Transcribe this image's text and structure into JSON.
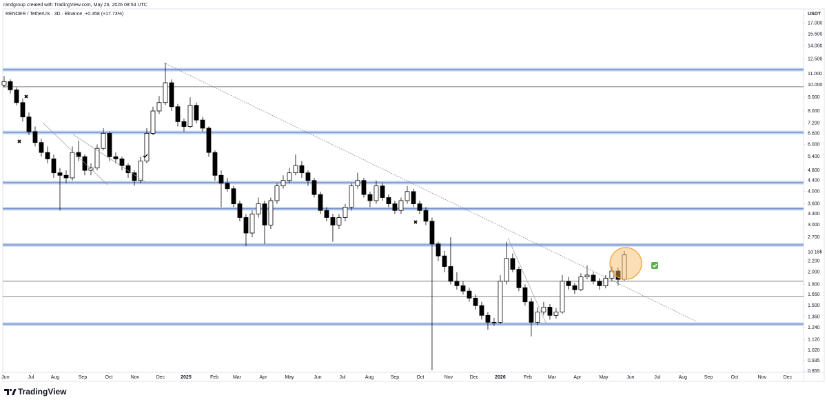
{
  "header": {
    "credit": "randgroup created with TradingView.com, May 26, 2026 08:54 UTC"
  },
  "footer": {
    "brand": "TradingView"
  },
  "chart_data": {
    "type": "candlestick",
    "title": "RENDER / TetherUS · 3D · Binance",
    "change": "+0.358 (+17.73%)",
    "y_unit": "USDT",
    "countdown": "1d 16h",
    "log_scale": true,
    "up_color": "#ffffff",
    "down_color": "#000000",
    "edge_color": "#000000",
    "change_color": "#089981",
    "open": [
      10.0,
      10.3,
      9.6,
      8.6,
      7.6,
      6.7,
      6.1,
      5.6,
      5.3,
      4.7,
      4.6,
      4.5,
      5.6,
      5.4,
      4.8,
      4.9,
      5.8,
      6.6,
      5.4,
      5.3,
      5.0,
      4.7,
      4.4,
      5.2,
      6.6,
      8.0,
      8.6,
      10.2,
      8.3,
      7.3,
      7.0,
      8.4,
      7.4,
      6.9,
      5.6,
      4.6,
      4.3,
      4.1,
      3.6,
      3.2,
      2.8,
      3.3,
      3.6,
      3.0,
      3.7,
      4.2,
      4.4,
      4.7,
      5.0,
      4.7,
      4.4,
      3.9,
      3.4,
      3.2,
      3.0,
      3.2,
      3.5,
      4.2,
      4.4,
      3.9,
      3.7,
      4.2,
      3.8,
      3.6,
      3.4,
      3.7,
      4.0,
      3.6,
      3.4,
      3.1,
      2.55,
      2.3,
      2.1,
      1.85,
      1.78,
      1.7,
      1.6,
      1.5,
      1.38,
      1.3,
      1.3,
      1.85,
      2.25,
      2.05,
      1.75,
      1.55,
      1.3,
      1.42,
      1.48,
      1.38,
      1.42,
      1.85,
      1.78,
      1.72,
      1.92,
      1.95,
      1.85,
      1.78,
      1.9,
      2.02,
      1.88
    ],
    "high": [
      10.8,
      10.5,
      9.8,
      8.9,
      7.9,
      7.0,
      6.3,
      5.9,
      5.5,
      4.9,
      4.8,
      5.9,
      6.2,
      5.5,
      5.1,
      6.0,
      6.9,
      6.7,
      5.6,
      5.4,
      5.1,
      4.8,
      5.4,
      6.9,
      8.3,
      9.1,
      12.1,
      10.5,
      8.5,
      7.5,
      9.0,
      8.6,
      7.6,
      7.0,
      5.7,
      4.8,
      4.5,
      4.2,
      3.7,
      3.3,
      3.4,
      3.8,
      3.7,
      3.8,
      4.3,
      4.6,
      4.9,
      5.5,
      5.2,
      4.8,
      4.5,
      4.0,
      3.5,
      3.3,
      3.3,
      3.6,
      4.3,
      4.7,
      4.5,
      4.0,
      4.4,
      4.3,
      3.9,
      3.7,
      3.8,
      4.2,
      4.1,
      3.7,
      3.5,
      3.2,
      2.6,
      2.4,
      2.7,
      2.0,
      1.85,
      1.75,
      1.65,
      1.55,
      1.42,
      1.35,
      1.95,
      2.6,
      2.35,
      2.1,
      1.8,
      1.6,
      1.48,
      1.55,
      1.52,
      1.47,
      1.95,
      1.92,
      1.82,
      1.98,
      2.12,
      2.0,
      1.9,
      1.95,
      2.1,
      2.08,
      2.4
    ],
    "low": [
      9.8,
      9.3,
      8.4,
      7.3,
      6.5,
      5.9,
      5.4,
      5.1,
      4.5,
      3.4,
      4.3,
      4.4,
      5.2,
      4.6,
      4.6,
      4.8,
      5.7,
      5.2,
      5.1,
      4.8,
      4.5,
      4.2,
      4.3,
      5.1,
      6.5,
      7.8,
      8.4,
      8.0,
      7.0,
      6.7,
      6.9,
      7.2,
      6.7,
      5.4,
      4.4,
      3.5,
      4.0,
      3.5,
      3.1,
      2.5,
      2.7,
      3.2,
      2.55,
      2.9,
      3.6,
      4.1,
      4.3,
      4.6,
      4.5,
      4.2,
      3.8,
      3.3,
      3.1,
      2.6,
      2.9,
      3.1,
      3.4,
      4.1,
      3.8,
      3.5,
      3.6,
      3.7,
      3.5,
      3.3,
      3.3,
      3.6,
      3.5,
      3.3,
      3.0,
      0.86,
      2.2,
      2.0,
      1.8,
      1.72,
      1.65,
      1.55,
      1.45,
      1.33,
      1.22,
      1.26,
      1.28,
      1.8,
      2.0,
      1.7,
      1.5,
      1.15,
      1.27,
      1.38,
      1.33,
      1.34,
      1.4,
      1.72,
      1.66,
      1.7,
      1.88,
      1.8,
      1.72,
      1.74,
      1.86,
      1.78,
      1.86
    ],
    "close": [
      10.3,
      9.6,
      8.6,
      7.6,
      6.7,
      6.1,
      5.6,
      5.3,
      4.7,
      4.6,
      4.5,
      5.6,
      5.4,
      4.8,
      4.9,
      5.8,
      6.6,
      5.4,
      5.3,
      5.0,
      4.7,
      4.4,
      5.2,
      6.6,
      8.0,
      8.6,
      10.2,
      8.3,
      7.3,
      7.0,
      8.4,
      7.4,
      6.9,
      5.6,
      4.6,
      4.3,
      4.1,
      3.6,
      3.2,
      2.8,
      3.3,
      3.6,
      3.0,
      3.7,
      4.2,
      4.4,
      4.7,
      5.0,
      4.7,
      4.4,
      3.9,
      3.4,
      3.2,
      3.0,
      3.2,
      3.5,
      4.2,
      4.4,
      3.9,
      3.7,
      4.2,
      3.8,
      3.6,
      3.4,
      3.7,
      4.0,
      3.6,
      3.4,
      3.1,
      2.55,
      2.3,
      2.1,
      1.85,
      1.78,
      1.7,
      1.6,
      1.5,
      1.38,
      1.3,
      1.3,
      1.85,
      2.25,
      2.05,
      1.75,
      1.55,
      1.3,
      1.42,
      1.48,
      1.38,
      1.42,
      1.85,
      1.78,
      1.72,
      1.92,
      1.95,
      1.85,
      1.78,
      1.9,
      2.02,
      1.88,
      2.32
    ],
    "xlim": [
      -0.22,
      128.9
    ],
    "xticks": [
      {
        "value": 0.22,
        "label": "Jun"
      },
      {
        "value": 4.33,
        "label": "Jul"
      },
      {
        "value": 8.22,
        "label": "Aug"
      },
      {
        "value": 12.67,
        "label": "Sep"
      },
      {
        "value": 16.89,
        "label": "Oct"
      },
      {
        "value": 21.11,
        "label": "Nov"
      },
      {
        "value": 25.22,
        "label": "Dec"
      },
      {
        "value": 29.33,
        "label": "2025"
      },
      {
        "value": 33.89,
        "label": "Feb"
      },
      {
        "value": 37.56,
        "label": "Mar"
      },
      {
        "value": 41.78,
        "label": "Apr"
      },
      {
        "value": 46,
        "label": "May"
      },
      {
        "value": 50.56,
        "label": "Jun"
      },
      {
        "value": 54.56,
        "label": "Jul"
      },
      {
        "value": 58.89,
        "label": "Aug"
      },
      {
        "value": 63,
        "label": "Sep"
      },
      {
        "value": 67.11,
        "label": "Oct"
      },
      {
        "value": 71.67,
        "label": "Nov"
      },
      {
        "value": 75.78,
        "label": "Dec"
      },
      {
        "value": 80,
        "label": "2026"
      },
      {
        "value": 84.44,
        "label": "Feb"
      },
      {
        "value": 88.33,
        "label": "Mar"
      },
      {
        "value": 92.44,
        "label": "Apr"
      },
      {
        "value": 96.67,
        "label": "May"
      },
      {
        "value": 101,
        "label": "Jun"
      },
      {
        "value": 105.33,
        "label": "Jul"
      },
      {
        "value": 109.44,
        "label": "Aug"
      },
      {
        "value": 113.56,
        "label": "Sep"
      },
      {
        "value": 117.78,
        "label": "Oct"
      },
      {
        "value": 122.22,
        "label": "Nov"
      },
      {
        "value": 126.33,
        "label": "Dec"
      }
    ],
    "ylim": [
      0.845,
      19.24
    ],
    "yticks": [
      {
        "value": 17,
        "label": "17.000"
      },
      {
        "value": 15.5,
        "label": "15.500"
      },
      {
        "value": 14,
        "label": "14.000"
      },
      {
        "value": 12.5,
        "label": "12.500"
      },
      {
        "value": 11,
        "label": "11.000"
      },
      {
        "value": 10,
        "label": "10.000"
      },
      {
        "value": 9,
        "label": "9.000"
      },
      {
        "value": 8,
        "label": "8.000"
      },
      {
        "value": 7.2,
        "label": "7.200"
      },
      {
        "value": 6.6,
        "label": "6.600"
      },
      {
        "value": 6,
        "label": "6.000"
      },
      {
        "value": 5.4,
        "label": "5.400"
      },
      {
        "value": 4.8,
        "label": "4.800"
      },
      {
        "value": 4.4,
        "label": "4.400"
      },
      {
        "value": 4,
        "label": "4.000"
      },
      {
        "value": 3.6,
        "label": "3.600"
      },
      {
        "value": 3.3,
        "label": "3.300"
      },
      {
        "value": 3,
        "label": "3.000"
      },
      {
        "value": 2.7,
        "label": "2.700"
      },
      {
        "value": 2.2,
        "label": "2.200"
      },
      {
        "value": 2,
        "label": "2.000"
      },
      {
        "value": 1.8,
        "label": "1.800"
      },
      {
        "value": 1.65,
        "label": "1.650"
      },
      {
        "value": 1.5,
        "label": "1.500"
      },
      {
        "value": 1.36,
        "label": "1.360"
      },
      {
        "value": 1.24,
        "label": "1.240"
      },
      {
        "value": 1.12,
        "label": "1.120"
      },
      {
        "value": 1.02,
        "label": "1.020"
      },
      {
        "value": 0.935,
        "label": "0.935"
      },
      {
        "value": 0.855,
        "label": "0.855"
      }
    ],
    "levels": [
      {
        "value": 11.42,
        "style": "band"
      },
      {
        "value": 9.85,
        "style": "line"
      },
      {
        "value": 6.65,
        "style": "band"
      },
      {
        "value": 4.32,
        "style": "band"
      },
      {
        "value": 3.45,
        "style": "band"
      },
      {
        "value": 2.53,
        "style": "band"
      },
      {
        "value": 1.85,
        "style": "line"
      },
      {
        "value": 1.62,
        "style": "line"
      },
      {
        "value": 1.28,
        "style": "band"
      }
    ],
    "trendline": {
      "x": [
        25.8,
        111.6
      ],
      "y": [
        12.1,
        1.31
      ]
    }
  }
}
